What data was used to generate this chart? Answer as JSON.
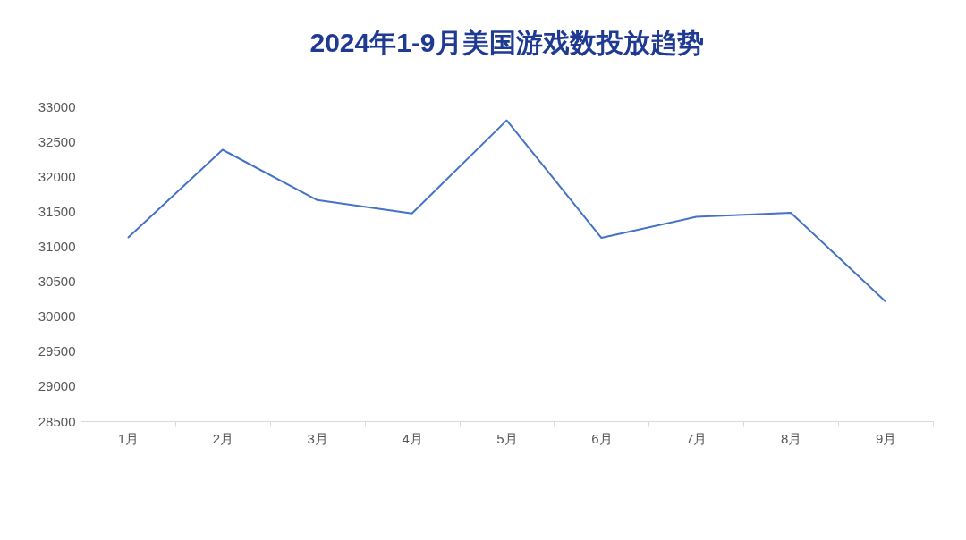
{
  "chart_data": {
    "type": "line",
    "title": "2024年1-9月美国游戏数投放趋势",
    "categories": [
      "1月",
      "2月",
      "3月",
      "4月",
      "5月",
      "6月",
      "7月",
      "8月",
      "9月"
    ],
    "series": [
      {
        "color": "#4472c4",
        "values": [
          31120,
          32380,
          31660,
          31470,
          32800,
          31120,
          31420,
          31480,
          30210
        ]
      }
    ],
    "ylim": [
      28500,
      33000
    ],
    "yticks": [
      28500,
      29000,
      29500,
      30000,
      30500,
      31000,
      31500,
      32000,
      32500,
      33000
    ],
    "grid": false,
    "legend": false,
    "marker": "none",
    "line_style": "solid"
  }
}
